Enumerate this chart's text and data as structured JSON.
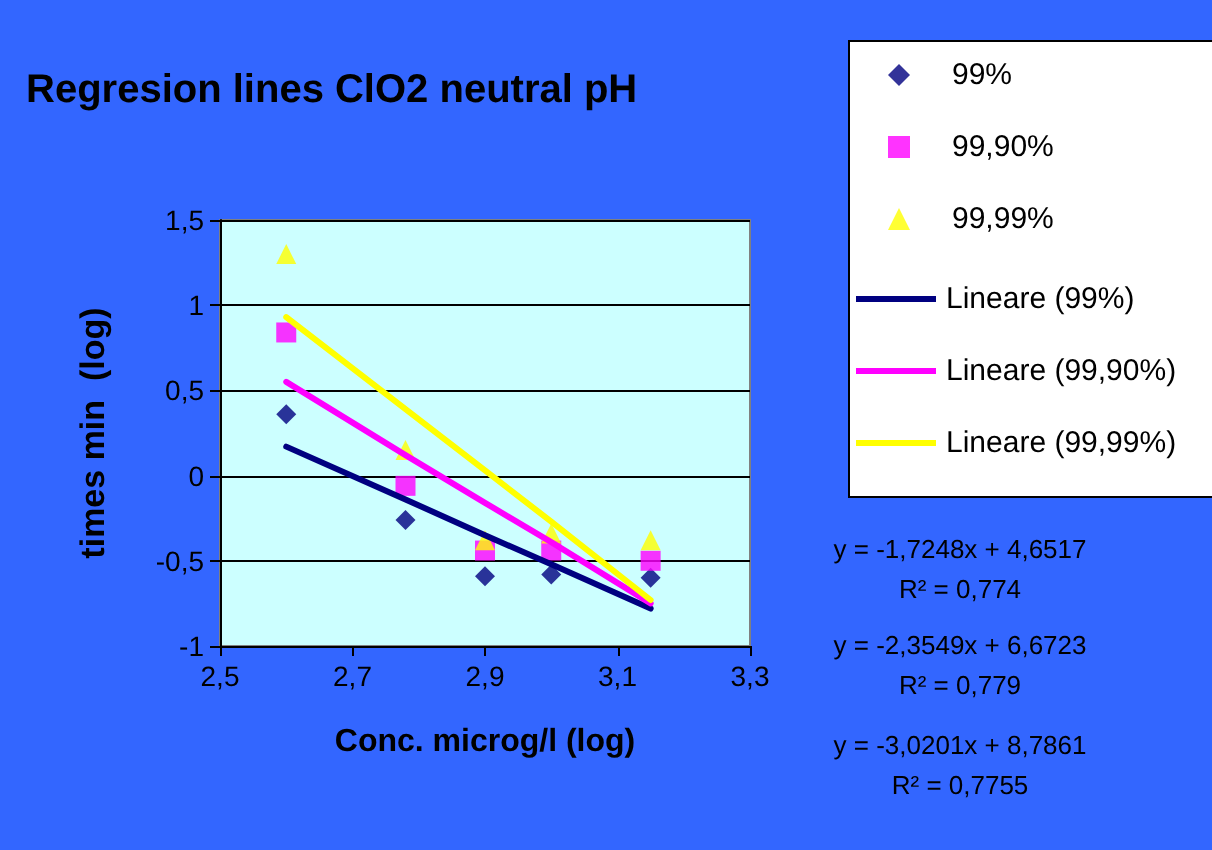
{
  "chart_data": {
    "type": "scatter",
    "title": "Regresion lines ClO2 neutral pH",
    "xlabel": "Conc. microg/l (log)",
    "ylabel": "times min  (log)",
    "x": [
      2.6,
      2.78,
      2.9,
      3.0,
      3.15
    ],
    "series": [
      {
        "name": "99%",
        "type": "scatter",
        "marker": "diamond",
        "color": "#000080",
        "values": [
          0.36,
          -0.26,
          -0.59,
          -0.58,
          -0.6
        ]
      },
      {
        "name": "99,90%",
        "type": "scatter",
        "marker": "square",
        "color": "#ff00ff",
        "values": [
          0.84,
          -0.06,
          -0.44,
          -0.44,
          -0.5
        ]
      },
      {
        "name": "99,99%",
        "type": "scatter",
        "marker": "triangle",
        "color": "#ffff00",
        "values": [
          1.3,
          0.15,
          -0.38,
          -0.34,
          -0.38
        ]
      },
      {
        "name": "Lineare (99%)",
        "type": "line",
        "marker": "none",
        "color": "#000080",
        "values": [
          0.17,
          -0.14,
          -0.35,
          -0.52,
          -0.78
        ]
      },
      {
        "name": "Lineare (99,90%)",
        "type": "line",
        "marker": "none",
        "color": "#ff00ff",
        "values": [
          0.55,
          0.12,
          -0.16,
          -0.39,
          -0.75
        ]
      },
      {
        "name": "Lineare (99,99%)",
        "type": "line",
        "marker": "none",
        "color": "#ffff00",
        "values": [
          0.93,
          0.39,
          0.03,
          -0.27,
          -0.73
        ]
      }
    ],
    "xlim": [
      2.5,
      3.3
    ],
    "xticks": [
      {
        "value": 2.5,
        "label": "2,5"
      },
      {
        "value": 2.7,
        "label": "2,7"
      },
      {
        "value": 2.9,
        "label": "2,9"
      },
      {
        "value": 3.1,
        "label": "3,1"
      },
      {
        "value": 3.3,
        "label": "3,3"
      }
    ],
    "ylim": [
      -1,
      1.5
    ],
    "yticks": [
      -1,
      {
        "value": -0.5,
        "label": "-0,5"
      },
      0,
      {
        "value": 0.5,
        "label": "0,5"
      },
      1,
      {
        "value": 1.5,
        "label": "1,5"
      }
    ],
    "grid": "y",
    "legend": "right",
    "annotations": [
      "y = -1,7248x + 4,6517",
      "R² = 0,774",
      "y = -2,3549x + 6,6723",
      "R² = 0,779",
      "y = -3,0201x + 8,7861",
      "R² = 0,7755"
    ]
  }
}
